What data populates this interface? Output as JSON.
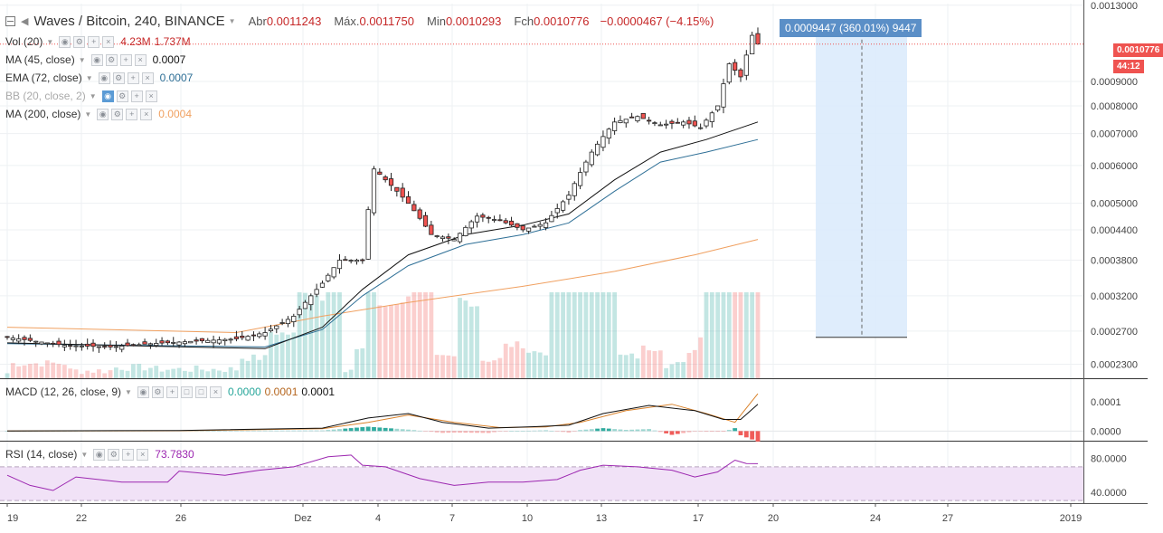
{
  "header": {
    "symbol": "Waves / Bitcoin, 240, BINANCE",
    "open_label": "Abr",
    "open": "0.0011243",
    "high_label": "Máx.",
    "high": "0.0011750",
    "low_label": "Min",
    "low": "0.0010293",
    "close_label": "Fch",
    "close": "0.0010776",
    "change": "−0.0000467 (−4.15%)"
  },
  "indicators": {
    "vol": {
      "name": "Vol (20)",
      "value1": "4.23M",
      "value2": "1.737M"
    },
    "ma45": {
      "name": "MA (45, close)",
      "value": "0.0007"
    },
    "ema72": {
      "name": "EMA (72, close)",
      "value": "0.0007"
    },
    "bb": {
      "name": "BB (20, close, 2)"
    },
    "ma200": {
      "name": "MA (200, close)",
      "value": "0.0004"
    },
    "macd": {
      "name": "MACD (12, 26, close, 9)",
      "v1": "0.0000",
      "v2": "0.0001",
      "v3": "0.0001"
    },
    "rsi": {
      "name": "RSI (14, close)",
      "value": "73.7830"
    }
  },
  "measure_label": "0.0009447 (360.01%) 9447",
  "price_tag": "0.0010776",
  "countdown": "44:12",
  "colors": {
    "up": "#26a69a",
    "down": "#ef5350",
    "candle": "#222222",
    "ma45": "#111111",
    "ema72": "#2e6f96",
    "ma200": "#f0a060",
    "rsi": "#9c27b0",
    "measure": "#5b8fc7"
  },
  "chart_data": {
    "type": "candlestick",
    "price_axis": {
      "scale": "log",
      "ticks": [
        "0.0013000",
        "0.0009000",
        "0.0008000",
        "0.0007000",
        "0.0006000",
        "0.0005000",
        "0.0004400",
        "0.0003800",
        "0.0003200",
        "0.0002700",
        "0.0002300"
      ]
    },
    "macd_axis": {
      "ticks": [
        "0.0001",
        "0.0000"
      ]
    },
    "rsi_axis": {
      "ticks": [
        "80.0000",
        "40.0000"
      ],
      "bands": [
        70,
        30
      ]
    },
    "time_axis": {
      "ticks": [
        "19",
        "22",
        "26",
        "Dez",
        "4",
        "7",
        "10",
        "13",
        "17",
        "20",
        "24",
        "27",
        "2019"
      ]
    },
    "price_path": [
      [
        0,
        0.000262
      ],
      [
        10,
        0.000252
      ],
      [
        18,
        0.00025
      ],
      [
        25,
        0.000254
      ],
      [
        30,
        0.000256
      ],
      [
        40,
        0.00026
      ],
      [
        45,
        0.000268
      ],
      [
        50,
        0.00029
      ],
      [
        55,
        0.00034
      ],
      [
        58,
        0.00038
      ],
      [
        62,
        0.00038
      ],
      [
        64,
        0.00059
      ],
      [
        66,
        0.00056
      ],
      [
        70,
        0.0005
      ],
      [
        74,
        0.00043
      ],
      [
        78,
        0.00042
      ],
      [
        82,
        0.00047
      ],
      [
        86,
        0.00046
      ],
      [
        90,
        0.00044
      ],
      [
        94,
        0.000455
      ],
      [
        98,
        0.00052
      ],
      [
        102,
        0.00064
      ],
      [
        106,
        0.00074
      ],
      [
        110,
        0.00076
      ],
      [
        114,
        0.00073
      ],
      [
        118,
        0.00074
      ],
      [
        121,
        0.00072
      ],
      [
        124,
        0.0008
      ],
      [
        126,
        0.00098
      ],
      [
        128,
        0.00092
      ],
      [
        130,
        0.001124
      ],
      [
        131,
        0.001078
      ]
    ],
    "ma45_path": [
      [
        0,
        0.000255
      ],
      [
        45,
        0.000248
      ],
      [
        55,
        0.000275
      ],
      [
        62,
        0.00033
      ],
      [
        70,
        0.00039
      ],
      [
        80,
        0.00043
      ],
      [
        90,
        0.00045
      ],
      [
        98,
        0.000475
      ],
      [
        106,
        0.00056
      ],
      [
        114,
        0.00064
      ],
      [
        122,
        0.00068
      ],
      [
        131,
        0.00074
      ]
    ],
    "ema72_path": [
      [
        0,
        0.000254
      ],
      [
        45,
        0.00025
      ],
      [
        55,
        0.000272
      ],
      [
        62,
        0.00032
      ],
      [
        70,
        0.00037
      ],
      [
        80,
        0.00041
      ],
      [
        90,
        0.00043
      ],
      [
        98,
        0.000455
      ],
      [
        106,
        0.00053
      ],
      [
        114,
        0.00061
      ],
      [
        122,
        0.00064
      ],
      [
        131,
        0.00068
      ]
    ],
    "ma200_path": [
      [
        0,
        0.000275
      ],
      [
        40,
        0.000268
      ],
      [
        55,
        0.00029
      ],
      [
        70,
        0.00031
      ],
      [
        90,
        0.000335
      ],
      [
        106,
        0.00036
      ],
      [
        120,
        0.00039
      ],
      [
        131,
        0.00042
      ]
    ],
    "macd_line": [
      [
        0,
        0.0
      ],
      [
        30,
        2e-06
      ],
      [
        55,
        1e-05
      ],
      [
        63,
        4.5e-05
      ],
      [
        70,
        6e-05
      ],
      [
        76,
        3e-05
      ],
      [
        84,
        1e-05
      ],
      [
        92,
        1.5e-05
      ],
      [
        98,
        2e-05
      ],
      [
        104,
        6e-05
      ],
      [
        112,
        8.8e-05
      ],
      [
        120,
        7e-05
      ],
      [
        125,
        4e-05
      ],
      [
        128,
        4e-05
      ],
      [
        131,
        9.2e-05
      ]
    ],
    "signal_line": [
      [
        0,
        0.0
      ],
      [
        30,
        1e-06
      ],
      [
        55,
        8e-06
      ],
      [
        63,
        3e-05
      ],
      [
        70,
        5.5e-05
      ],
      [
        78,
        3e-05
      ],
      [
        86,
        1.2e-05
      ],
      [
        94,
        1.4e-05
      ],
      [
        100,
        3e-05
      ],
      [
        108,
        7e-05
      ],
      [
        116,
        9.2e-05
      ],
      [
        122,
        6e-05
      ],
      [
        127,
        3e-05
      ],
      [
        131,
        0.000128
      ]
    ],
    "rsi_path": [
      [
        0,
        60
      ],
      [
        4,
        48
      ],
      [
        8,
        42
      ],
      [
        12,
        58
      ],
      [
        20,
        52
      ],
      [
        28,
        52
      ],
      [
        30,
        65
      ],
      [
        38,
        60
      ],
      [
        44,
        66
      ],
      [
        50,
        70
      ],
      [
        56,
        82
      ],
      [
        60,
        84
      ],
      [
        62,
        72
      ],
      [
        66,
        70
      ],
      [
        72,
        56
      ],
      [
        78,
        48
      ],
      [
        84,
        52
      ],
      [
        90,
        52
      ],
      [
        96,
        55
      ],
      [
        100,
        66
      ],
      [
        104,
        72
      ],
      [
        110,
        70
      ],
      [
        116,
        66
      ],
      [
        120,
        58
      ],
      [
        124,
        64
      ],
      [
        127,
        78
      ],
      [
        129,
        74
      ],
      [
        131,
        73.783
      ]
    ],
    "measurement": {
      "from_price": 0.000262,
      "to_price": 0.001207,
      "label": "0.0009447 (360.01%) 9447"
    }
  }
}
